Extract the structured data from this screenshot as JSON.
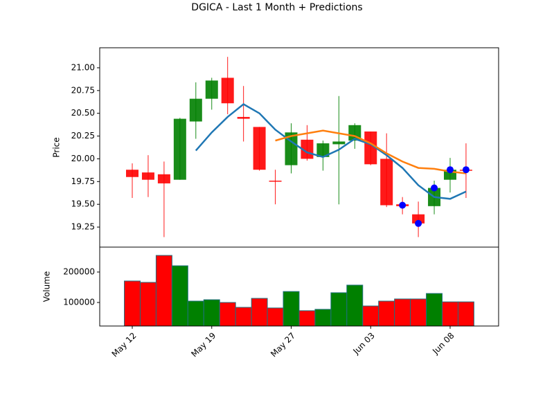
{
  "chart_data": [
    {
      "type": "candlestick",
      "title": "DGICA - Last 1 Month + Predictions",
      "ylabel": "Price",
      "open": [
        19.88,
        19.85,
        19.83,
        19.77,
        20.41,
        20.66,
        20.89,
        20.46,
        20.35,
        19.76,
        19.93,
        20.21,
        20.02,
        20.16,
        20.2,
        20.3,
        20.0,
        19.5,
        19.39,
        19.48,
        19.77,
        19.88
      ],
      "high": [
        19.95,
        20.04,
        19.97,
        20.45,
        20.84,
        20.89,
        21.12,
        20.8,
        20.35,
        19.88,
        20.39,
        20.37,
        20.2,
        20.69,
        20.39,
        20.3,
        20.28,
        19.58,
        19.53,
        19.76,
        20.01,
        20.17
      ],
      "low": [
        19.57,
        19.58,
        19.14,
        19.77,
        20.22,
        20.54,
        20.49,
        20.19,
        19.87,
        19.5,
        19.84,
        19.98,
        19.87,
        19.5,
        20.11,
        19.93,
        19.47,
        19.39,
        19.14,
        19.39,
        19.63,
        19.57
      ],
      "close": [
        19.8,
        19.77,
        19.73,
        20.44,
        20.66,
        20.86,
        20.61,
        20.44,
        19.88,
        19.75,
        20.29,
        20.0,
        20.17,
        20.19,
        20.37,
        19.94,
        19.49,
        19.48,
        19.29,
        19.68,
        19.88,
        19.87
      ],
      "up_color": "#008000",
      "down_color": "#ff0000",
      "series": [
        {
          "color": "#1f77b4",
          "values": [
            null,
            null,
            null,
            null,
            20.09,
            20.29,
            20.46,
            20.6,
            20.5,
            20.32,
            20.19,
            20.07,
            20.02,
            20.1,
            20.22,
            20.16,
            20.04,
            19.9,
            19.71,
            19.58,
            19.56,
            19.64
          ]
        },
        {
          "color": "#ff7f0e",
          "values": [
            null,
            null,
            null,
            null,
            null,
            null,
            null,
            null,
            null,
            20.2,
            20.25,
            20.28,
            20.31,
            20.28,
            20.25,
            20.17,
            20.06,
            19.97,
            19.9,
            19.89,
            19.86,
            19.84
          ]
        }
      ],
      "predictions": {
        "color": "#0000ff",
        "values": [
          null,
          null,
          null,
          null,
          null,
          null,
          null,
          null,
          null,
          null,
          null,
          null,
          null,
          null,
          null,
          null,
          null,
          19.49,
          19.29,
          19.68,
          19.88,
          19.88
        ]
      },
      "ylim": [
        19.03,
        21.22
      ],
      "yticks": [
        19.25,
        {
          "value": 19.5,
          "label": "19.50"
        },
        19.75,
        {
          "value": 20,
          "label": "20.00"
        },
        20.25,
        {
          "value": 20.5,
          "label": "20.50"
        },
        20.75,
        {
          "value": 21,
          "label": "21.00"
        }
      ]
    },
    {
      "type": "bar",
      "ylabel": "Volume",
      "categories": [
        "May 12",
        null,
        null,
        null,
        null,
        "May 19",
        null,
        null,
        null,
        null,
        "May 27",
        null,
        null,
        null,
        null,
        "Jun 03",
        null,
        null,
        null,
        null,
        "Jun 08",
        null
      ],
      "values": [
        170500,
        166000,
        254500,
        220500,
        104500,
        109000,
        100000,
        84000,
        113500,
        82000,
        136000,
        73000,
        77500,
        132000,
        157000,
        88500,
        104500,
        111500,
        111500,
        129500,
        102000,
        102000
      ],
      "colors": [
        "#ff0000",
        "#ff0000",
        "#ff0000",
        "#008000",
        "#008000",
        "#008000",
        "#ff0000",
        "#ff0000",
        "#ff0000",
        "#ff0000",
        "#008000",
        "#ff0000",
        "#008000",
        "#008000",
        "#008000",
        "#ff0000",
        "#ff0000",
        "#ff0000",
        "#ff0000",
        "#008000",
        "#ff0000",
        "#ff0000"
      ],
      "edge_color": "#1f6f7f",
      "ylim": [
        22700,
        281800
      ],
      "yticks": [
        100000,
        200000
      ]
    }
  ]
}
